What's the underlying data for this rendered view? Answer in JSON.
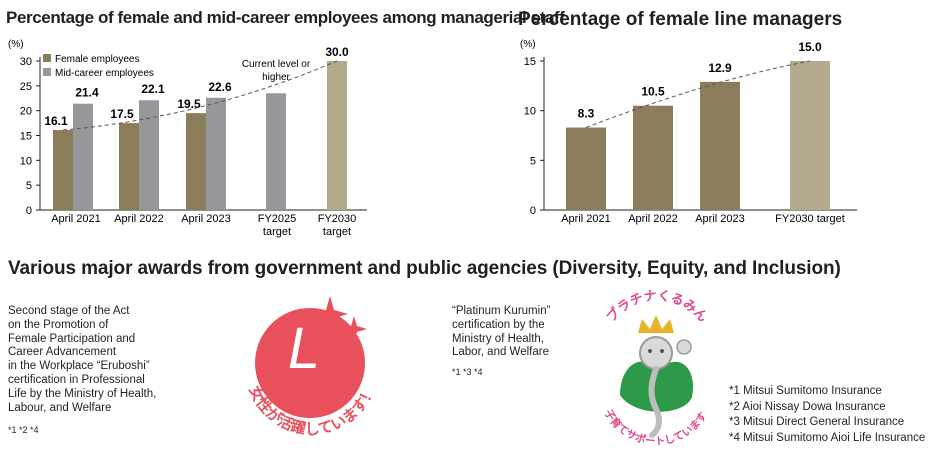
{
  "chart_data": [
    {
      "type": "bar",
      "title": "Percentage of female and mid-career employees among managerial staff",
      "ylabel": "(%)",
      "ylim": [
        0,
        30
      ],
      "yticks": [
        0,
        5,
        10,
        15,
        20,
        25,
        30
      ],
      "categories": [
        "April 2021",
        "April 2022",
        "April 2023",
        "FY2025 target",
        "FY2030 target"
      ],
      "category_lines": [
        [
          "April 2021"
        ],
        [
          "April 2022"
        ],
        [
          "April 2023"
        ],
        [
          "FY2025",
          "target"
        ],
        [
          "FY2030",
          "target"
        ]
      ],
      "series": [
        {
          "name": "Female employees",
          "color": "#8c7d5a",
          "values": [
            16.1,
            17.5,
            19.5,
            null,
            30.0
          ]
        },
        {
          "name": "Mid-career employees",
          "color": "#96979b",
          "values": [
            21.4,
            22.1,
            22.6,
            23.5,
            null
          ]
        }
      ],
      "data_labels": [
        "16.1",
        "21.4",
        "17.5",
        "22.1",
        "19.5",
        "22.6",
        "30.0"
      ],
      "annotation": [
        "Current level or",
        "higher"
      ],
      "target_color": "#b4a98a"
    },
    {
      "type": "bar",
      "title": "Percentage of female line managers",
      "ylabel": "(%)",
      "ylim": [
        0,
        15
      ],
      "yticks": [
        0,
        5,
        10,
        15
      ],
      "categories": [
        "April 2021",
        "April 2022",
        "April 2023",
        "FY2030 target"
      ],
      "values": [
        8.3,
        10.5,
        12.9,
        15.0
      ],
      "data_labels": [
        "8.3",
        "10.5",
        "12.9",
        "15.0"
      ],
      "colors": [
        "#8c7d5a",
        "#8c7d5a",
        "#8c7d5a",
        "#b4a98a"
      ]
    }
  ],
  "awards": {
    "heading": "Various major awards from government and public agencies (Diversity, Equity, and Inclusion)",
    "eruboshi": {
      "lines": [
        "Second stage of the Act",
        "on the Promotion of",
        "Female Participation and",
        "Career Advancement",
        "in the Workplace “Eruboshi”",
        "certification in Professional",
        "Life by the Ministry of Health,",
        "Labour, and Welfare"
      ],
      "notes": "*1  *2  *4",
      "logo_text": "女性が活躍しています！",
      "logo_mark": "L",
      "logo_color": "#e8505b"
    },
    "kurumin": {
      "lines": [
        "“Platinum Kurumin”",
        "certification by the",
        "Ministry of Health,",
        "Labor, and Welfare"
      ],
      "notes": "*1  *3  *4",
      "logo_top_text": "プラチナくるみん",
      "logo_bottom_text": "子育てサポートしています",
      "top_color": "#e0458f",
      "bottom_color": "#2d9a4a"
    },
    "legend": [
      "*1 Mitsui Sumitomo Insurance",
      "*2 Aioi Nissay Dowa Insurance",
      "*3 Mitsui Direct General Insurance",
      "*4 Mitsui Sumitomo Aioi Life Insurance"
    ]
  }
}
